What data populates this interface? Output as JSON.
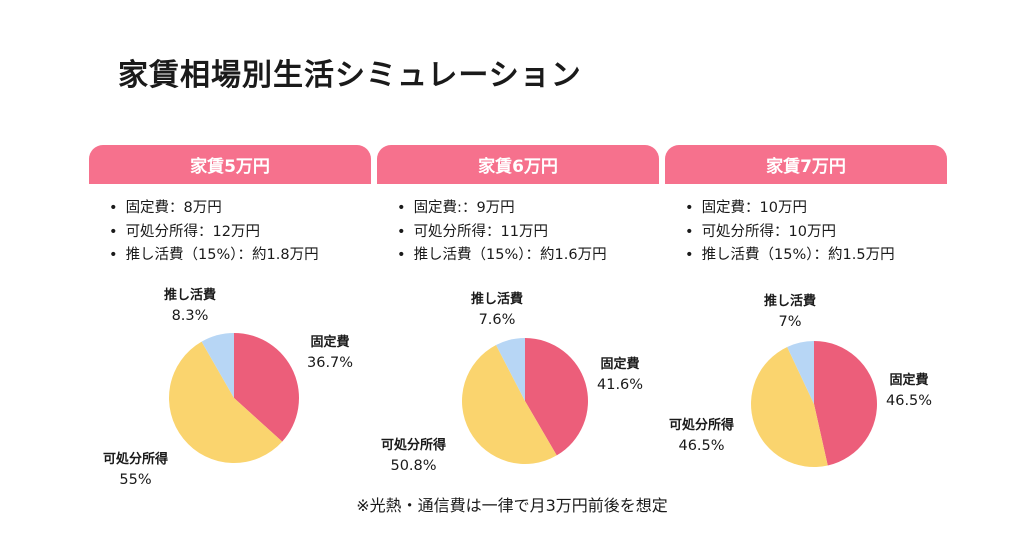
{
  "title": "家賃相場別生活シミュレーション",
  "note": "※光熱・通信費は一律で月3万円前後を想定",
  "colors": {
    "header": "#f6718d",
    "fixed": "#ec5e7a",
    "disposable": "#fad46e",
    "oshikatsu": "#b7d6f5"
  },
  "panels": [
    {
      "header": "家賃5万円",
      "bullets": [
        "固定費：8万円",
        "可処分所得：12万円",
        "推し活費（15%）：約1.8万円"
      ],
      "labels": {
        "fixed_name": "固定費",
        "fixed_pct": "36.7%",
        "disp_name": "可処分所得",
        "disp_pct": "55%",
        "oshi_name": "推し活費",
        "oshi_pct": "8.3%"
      }
    },
    {
      "header": "家賃6万円",
      "bullets": [
        "固定費:：9万円",
        "可処分所得：11万円",
        "推し活費（15%）：約1.6万円"
      ],
      "labels": {
        "fixed_name": "固定費",
        "fixed_pct": "41.6%",
        "disp_name": "可処分所得",
        "disp_pct": "50.8%",
        "oshi_name": "推し活費",
        "oshi_pct": "7.6%"
      }
    },
    {
      "header": "家賃7万円",
      "bullets": [
        "固定費：10万円",
        "可処分所得：10万円",
        "推し活費（15%）：約1.5万円"
      ],
      "labels": {
        "fixed_name": "固定費",
        "fixed_pct": "46.5%",
        "disp_name": "可処分所得",
        "disp_pct": "46.5%",
        "oshi_name": "推し活費",
        "oshi_pct": "7%"
      }
    }
  ],
  "chart_data": [
    {
      "type": "pie",
      "title": "家賃5万円",
      "categories": [
        "固定費",
        "可処分所得",
        "推し活費"
      ],
      "values": [
        36.7,
        55,
        8.3
      ]
    },
    {
      "type": "pie",
      "title": "家賃6万円",
      "categories": [
        "固定費",
        "可処分所得",
        "推し活費"
      ],
      "values": [
        41.6,
        50.8,
        7.6
      ]
    },
    {
      "type": "pie",
      "title": "家賃7万円",
      "categories": [
        "固定費",
        "可処分所得",
        "推し活費"
      ],
      "values": [
        46.5,
        46.5,
        7
      ]
    }
  ]
}
